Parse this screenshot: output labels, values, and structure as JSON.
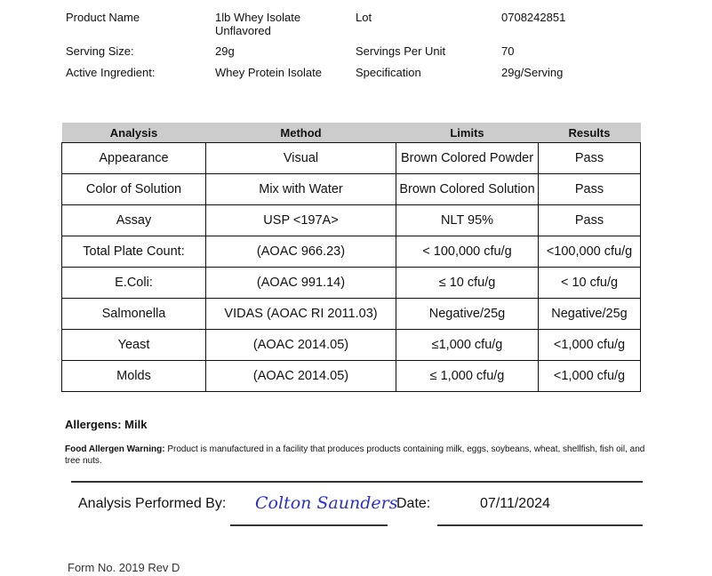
{
  "info": [
    {
      "label": "Product Name",
      "value": "1lb Whey Isolate",
      "value2": "Unflavored",
      "label2": "Lot",
      "value3": "0708242851"
    },
    {
      "label": "Serving Size:",
      "value": "29g",
      "label2": "Servings Per Unit",
      "value3": "70"
    },
    {
      "label": "Active Ingredient:",
      "value": "Whey Protein Isolate",
      "label2": "Specification",
      "value3": "29g/Serving"
    }
  ],
  "table": {
    "headers": [
      "Analysis",
      "Method",
      "Limits",
      "Results"
    ],
    "rows": [
      [
        "Appearance",
        "Visual",
        "Brown Colored Powder",
        "Pass"
      ],
      [
        "Color of Solution",
        "Mix with Water",
        "Brown Colored Solution",
        "Pass"
      ],
      [
        "Assay",
        "USP <197A>",
        "NLT 95%",
        "Pass"
      ],
      [
        "Total Plate Count:",
        "(AOAC 966.23)",
        "< 100,000 cfu/g",
        "<100,000 cfu/g"
      ],
      [
        "E.Coli:",
        "(AOAC 991.14)",
        "≤ 10 cfu/g",
        "< 10 cfu/g"
      ],
      [
        "Salmonella",
        "VIDAS (AOAC RI 2011.03)",
        "Negative/25g",
        "Negative/25g"
      ],
      [
        "Yeast",
        "(AOAC 2014.05)",
        "≤1,000 cfu/g",
        "<1,000 cfu/g"
      ],
      [
        "Molds",
        "(AOAC 2014.05)",
        "≤ 1,000 cfu/g",
        "<1,000  cfu/g"
      ]
    ]
  },
  "allergens": "Allergens: Milk",
  "warning": {
    "label": "Food Allergen Warning:",
    "text": " Product is manufactured in a facility that produces products containing milk, eggs, soybeans, wheat, shellfish, fish oil, and tree nuts."
  },
  "signoff": {
    "label": "Analysis Performed By:",
    "signature": "Colton Saunders",
    "date_label": "Date:",
    "date": "07/11/2024",
    "signature_color": "#2a2fd0"
  },
  "form_no": "Form No. 2019 Rev D"
}
